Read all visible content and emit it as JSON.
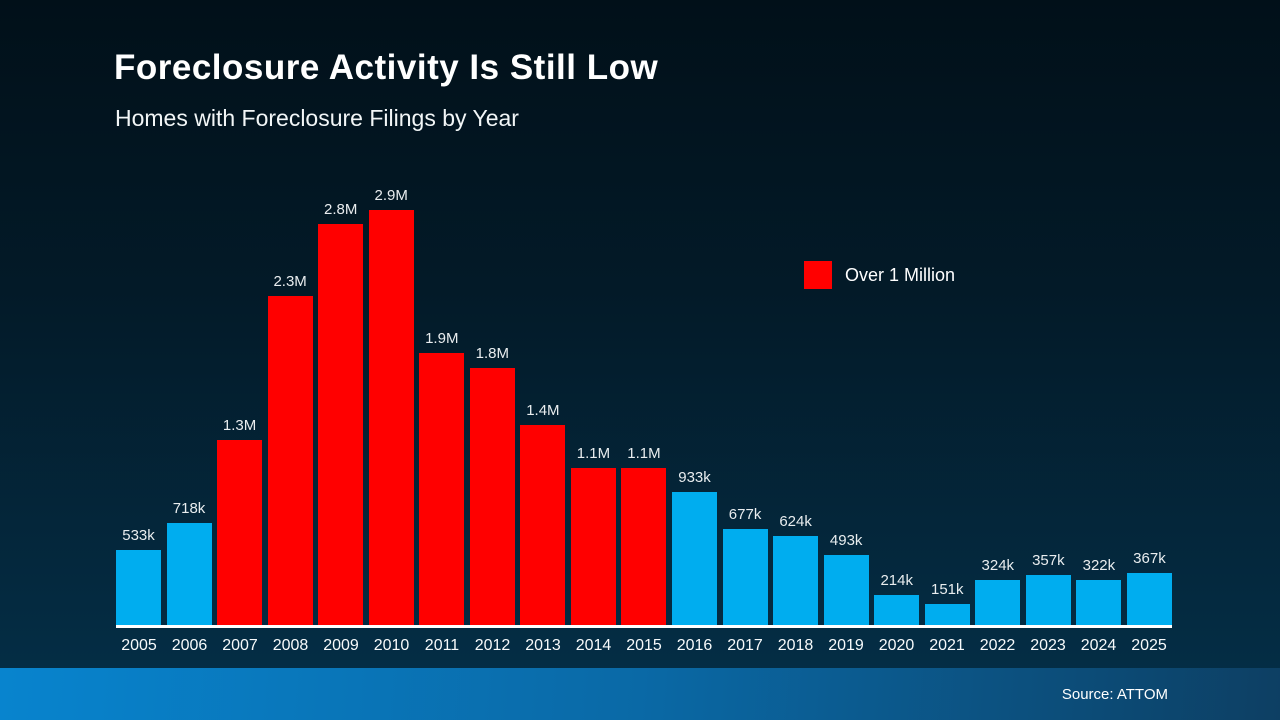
{
  "slide": {
    "title": "Foreclosure Activity Is Still Low",
    "subtitle": "Homes with Foreclosure Filings by Year",
    "source": "Source: ATTOM"
  },
  "chart_data": {
    "type": "bar",
    "title": "Foreclosure Activity Is Still Low",
    "subtitle": "Homes with Foreclosure Filings by Year",
    "categories": [
      "2005",
      "2006",
      "2007",
      "2008",
      "2009",
      "2010",
      "2011",
      "2012",
      "2013",
      "2014",
      "2015",
      "2016",
      "2017",
      "2018",
      "2019",
      "2020",
      "2021",
      "2022",
      "2023",
      "2024",
      "2025"
    ],
    "values": [
      533000,
      718000,
      1300000,
      2300000,
      2800000,
      2900000,
      1900000,
      1800000,
      1400000,
      1100000,
      1100000,
      933000,
      677000,
      624000,
      493000,
      214000,
      151000,
      324000,
      357000,
      322000,
      367000
    ],
    "value_labels": [
      "533k",
      "718k",
      "1.3M",
      "2.3M",
      "2.8M",
      "2.9M",
      "1.9M",
      "1.8M",
      "1.4M",
      "1.1M",
      "1.1M",
      "933k",
      "677k",
      "624k",
      "493k",
      "214k",
      "151k",
      "324k",
      "357k",
      "322k",
      "367k"
    ],
    "threshold": 1000000,
    "colors": {
      "over_million": "#FF0000",
      "under_million": "#00ADEF"
    },
    "legend": [
      {
        "label": "Over 1 Million",
        "color": "#FF0000"
      }
    ],
    "legend_position": "right-upper",
    "xlabel": "",
    "ylabel": "",
    "ylim": [
      0,
      2900000
    ],
    "grid": false,
    "source": "Source: ATTOM"
  }
}
